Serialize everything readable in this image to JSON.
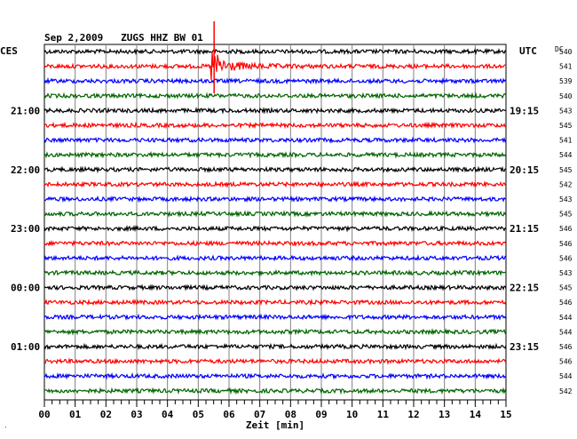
{
  "header": {
    "title": "Sep 2,2009   ZUGS HHZ BW 01",
    "left_zone": "CES",
    "right_zone": "UTC",
    "dc_label": "DC"
  },
  "footer": {
    "xlabel": "Zeit [min]",
    "corner_mark": "′"
  },
  "colors": {
    "trace_cycle": [
      "#000000",
      "#ff0000",
      "#0000ff",
      "#006400"
    ],
    "grid": "#808080",
    "frame": "#000000",
    "background": "#ffffff"
  },
  "chart_data": {
    "type": "line",
    "xlabel": "Zeit [min]",
    "xlim": [
      0,
      15
    ],
    "x_ticks": [
      "00",
      "01",
      "02",
      "03",
      "04",
      "05",
      "06",
      "07",
      "08",
      "09",
      "10",
      "11",
      "12",
      "13",
      "14",
      "15"
    ],
    "traces_count": 24,
    "left_time_labels": [
      {
        "row": 4,
        "text": "21:00"
      },
      {
        "row": 8,
        "text": "22:00"
      },
      {
        "row": 12,
        "text": "23:00"
      },
      {
        "row": 16,
        "text": "00:00"
      },
      {
        "row": 20,
        "text": "01:00"
      }
    ],
    "right_time_labels": [
      {
        "row": 4,
        "text": "19:15"
      },
      {
        "row": 8,
        "text": "20:15"
      },
      {
        "row": 12,
        "text": "21:15"
      },
      {
        "row": 16,
        "text": "22:15"
      },
      {
        "row": 20,
        "text": "23:15"
      }
    ],
    "dc_offsets": [
      540,
      541,
      539,
      540,
      543,
      545,
      541,
      544,
      545,
      542,
      543,
      545,
      546,
      546,
      546,
      543,
      545,
      546,
      544,
      544,
      546,
      546,
      544,
      542
    ],
    "event": {
      "row": 1,
      "onset_minute": 5.4,
      "note": "Earthquake signal visible starting around minute 5.4 on second trace"
    }
  }
}
